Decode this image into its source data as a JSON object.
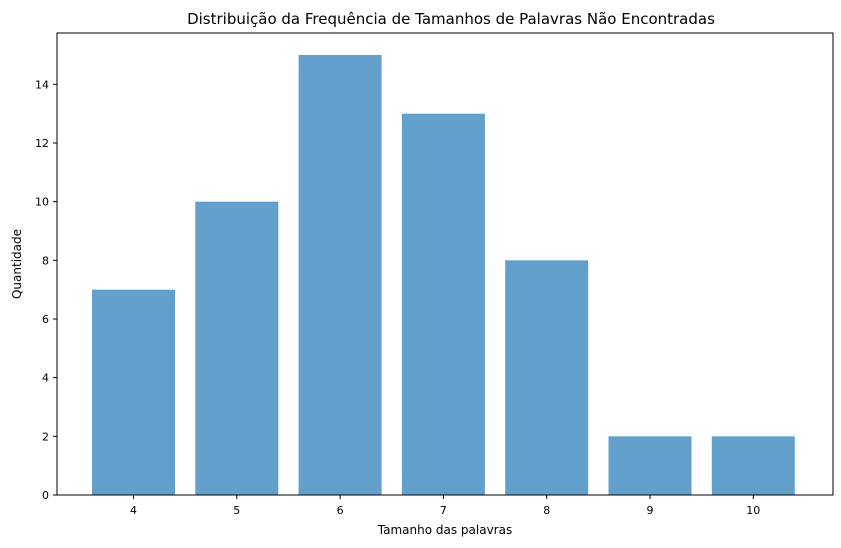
{
  "chart_data": {
    "type": "bar",
    "title": "Distribuição da Frequência de Tamanhos de Palavras Não Encontradas",
    "xlabel": "Tamanho das palavras",
    "ylabel": "Quantidade",
    "categories": [
      "4",
      "5",
      "6",
      "7",
      "8",
      "9",
      "10"
    ],
    "values": [
      7,
      10,
      15,
      13,
      8,
      2,
      2
    ],
    "y_ticks": [
      "0",
      "2",
      "4",
      "6",
      "8",
      "10",
      "12",
      "14"
    ],
    "ylim": [
      0,
      15.75
    ],
    "grid": false,
    "legend": "none",
    "bar_color": "#62a0cb"
  }
}
